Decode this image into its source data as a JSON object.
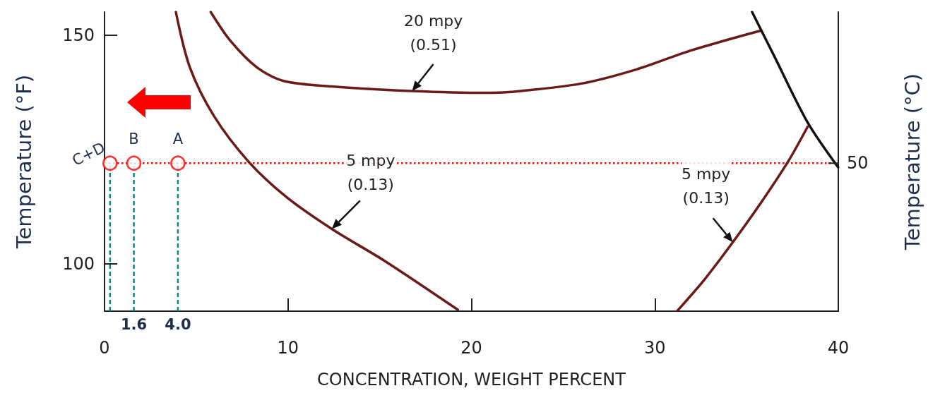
{
  "chart_data": {
    "type": "line",
    "xlabel": "CONCENTRATION, WEIGHT PERCENT",
    "ylabel": "Temperature (°F)",
    "y2label": "Temperature (°C)",
    "xlim": [
      0,
      40
    ],
    "xticks": [
      0,
      10,
      20,
      30,
      40
    ],
    "ylim": [
      89.6,
      155.1
    ],
    "yticks": [
      100,
      150
    ],
    "marker": "none",
    "line_style": "solid",
    "series": [
      {
        "color": "#6b1a1a",
        "x": [
          3.89,
          4.65,
          5.97,
          7.86,
          9.91,
          12.39,
          15.31,
          19.26
        ],
        "values": [
          155.1,
          143,
          132.3,
          122.3,
          114.6,
          107.6,
          100.5,
          89.9
        ]
      },
      {
        "color": "#6b1a1a",
        "x": [
          5.79,
          6.84,
          8.3,
          9.76,
          12.39,
          16.77,
          20.69,
          22.18,
          25.95,
          28.97,
          31.98,
          35.76
        ],
        "values": [
          155.1,
          148.9,
          143.0,
          140.0,
          138.8,
          137.8,
          137.4,
          137.6,
          139.4,
          142.5,
          146.7,
          151.0
        ]
      },
      {
        "color": "#111111",
        "x": [
          35.3,
          36.5,
          38.33,
          39.99
        ],
        "values": [
          155.1,
          145.5,
          130.9,
          121.1
        ]
      },
      {
        "color": "#6b1a1a",
        "x": [
          31.23,
          32.74,
          34.25,
          35.76,
          37.27,
          38.33
        ],
        "values": [
          89.7,
          96.7,
          104.7,
          113.2,
          122.4,
          130.0
        ]
      },
      {
        "type": "scatter",
        "marker": "circle",
        "color": "#ff0000",
        "x": [
          0.3,
          1.6,
          4.0
        ],
        "values": [
          122,
          122,
          122
        ]
      }
    ],
    "ref_lines": [
      {
        "axis": "y",
        "value": 122,
        "color": "#ff0000",
        "line_style": "dotted"
      },
      {
        "axis": "x",
        "value": 0.3,
        "color": "#14867f",
        "line_style": "dashed"
      },
      {
        "axis": "x",
        "value": 1.6,
        "color": "#14867f",
        "line_style": "dashed"
      },
      {
        "axis": "x",
        "value": 4.0,
        "color": "#14867f",
        "line_style": "dashed"
      }
    ],
    "annotations": [
      {
        "text": "20 mpy\n(0.51)",
        "x": 16.77,
        "y": 137.8
      },
      {
        "text": "5 mpy\n(0.13)",
        "x": 12.39,
        "y": 107.6
      },
      {
        "text": "5 mpy\n(0.13)",
        "x": 34.25,
        "y": 104.7
      },
      {
        "text": "C+D",
        "x": 0.3,
        "y": 122
      },
      {
        "text": "B",
        "x": 1.6,
        "y": 122
      },
      {
        "text": "A",
        "x": 4.0,
        "y": 122
      },
      {
        "text": "1.6",
        "x": 1.6,
        "y": 89.6
      },
      {
        "text": "4.0",
        "x": 4.0,
        "y": 89.6
      },
      "50"
    ]
  }
}
